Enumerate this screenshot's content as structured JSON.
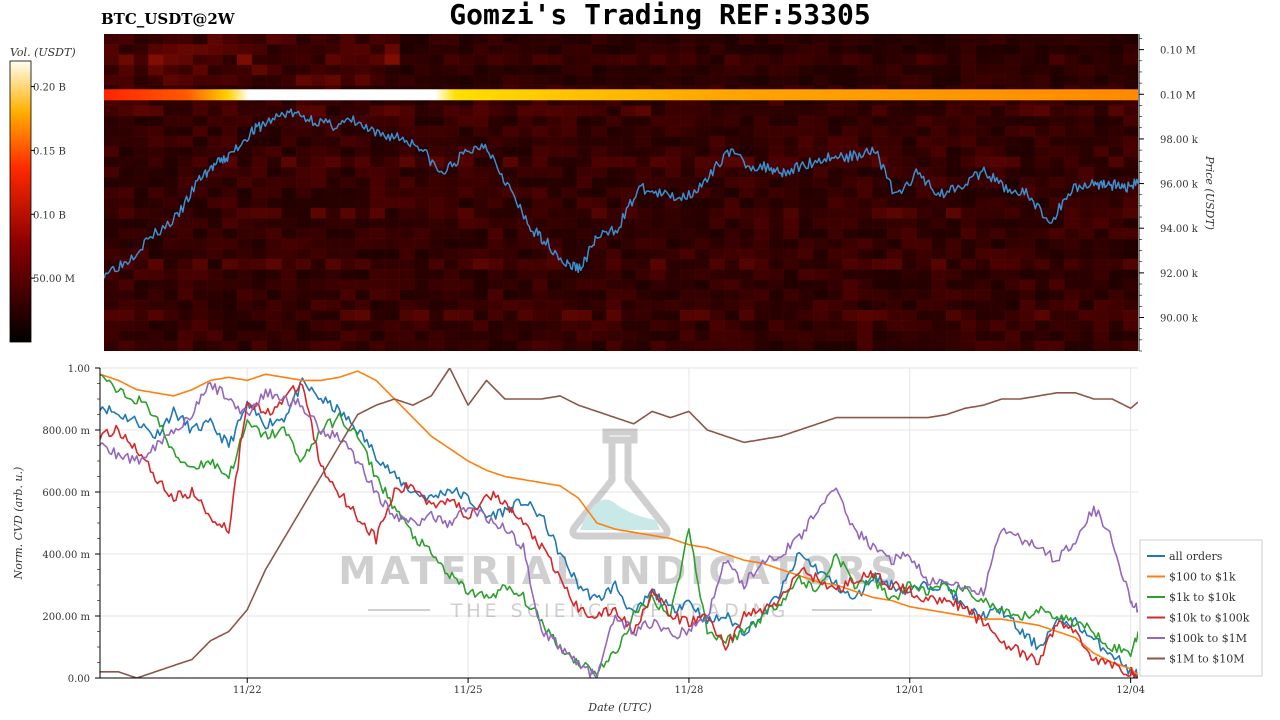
{
  "header": {
    "title": "Gomzi's Trading REF:53305",
    "symbol": "BTC_USDT@2W"
  },
  "watermark": {
    "line1": "MATERIAL INDICATORS",
    "line2": "THE SCIENCE OF TRADING"
  },
  "colors": {
    "price_line": "#3a8fd0",
    "background": "#ffffff"
  },
  "chart_data": [
    {
      "type": "heatmap",
      "overlay": "line",
      "colorbar": {
        "label": "Vol. (USDT)",
        "ticks": [
          "0.20 B",
          "0.15 B",
          "0.10 B",
          "50.00 M"
        ],
        "tick_values": [
          200000000,
          150000000,
          100000000,
          50000000
        ],
        "range": [
          0,
          220000000
        ],
        "colormap": "hot"
      },
      "ylabel": "Price (USDT)",
      "y_ticks": [
        "0.10 M",
        "0.10 M",
        "98.00 k",
        "96.00 k",
        "94.00 k",
        "92.00 k",
        "90.00 k"
      ],
      "y_tick_values": [
        102000,
        100000,
        98000,
        96000,
        94000,
        92000,
        90000
      ],
      "ylim": [
        88500,
        102700
      ],
      "xlim": [
        0,
        14.1
      ],
      "bright_band": {
        "price": 100000,
        "peak_volume": 210000000
      },
      "series": [
        {
          "x": [
            0,
            0.3,
            0.6,
            1.0,
            1.3,
            1.5,
            1.7,
            2.0,
            2.2,
            2.5,
            2.8,
            3.1,
            3.4,
            3.7,
            4.0,
            4.3,
            4.6,
            4.9,
            5.2,
            5.5,
            5.8,
            6.0,
            6.3,
            6.5,
            6.7,
            7.0,
            7.3,
            7.6,
            7.9,
            8.2,
            8.5,
            8.8,
            9.1,
            9.3,
            9.6,
            9.9,
            10.2,
            10.5,
            10.8,
            11.1,
            11.4,
            11.7,
            12.0,
            12.3,
            12.6,
            12.9,
            13.2,
            13.5,
            13.7,
            13.9,
            14.1
          ],
          "values": [
            92000,
            92500,
            93500,
            94500,
            96200,
            96800,
            97200,
            98300,
            98700,
            99200,
            98900,
            98600,
            98800,
            98200,
            98100,
            97700,
            96400,
            97300,
            97800,
            96000,
            94000,
            93500,
            92400,
            92200,
            93500,
            94000,
            95800,
            95500,
            95400,
            96000,
            97500,
            96800,
            96700,
            96500,
            96900,
            97200,
            97200,
            97600,
            95400,
            96500,
            95500,
            96000,
            96500,
            95800,
            95500,
            94200,
            95800,
            96000,
            96000,
            95800,
            96000
          ]
        }
      ]
    },
    {
      "type": "line",
      "xlabel": "Date (UTC)",
      "ylabel": "Norm. CVD (arb. u.)",
      "x_ticks": [
        "11/22",
        "11/25",
        "11/28",
        "12/01",
        "12/04"
      ],
      "x_tick_values": [
        2,
        5,
        8,
        11,
        14
      ],
      "xlim": [
        0,
        14.1
      ],
      "y_ticks": [
        "0.00",
        "200.00 m",
        "400.00 m",
        "600.00 m",
        "800.00 m",
        "1.00"
      ],
      "y_tick_values": [
        0,
        0.2,
        0.4,
        0.6,
        0.8,
        1.0
      ],
      "ylim": [
        0,
        1.0
      ],
      "grid": true,
      "legend_position": "bottom-right",
      "x": [
        0,
        0.25,
        0.5,
        0.75,
        1,
        1.25,
        1.5,
        1.75,
        2,
        2.25,
        2.5,
        2.75,
        3,
        3.25,
        3.5,
        3.75,
        4,
        4.25,
        4.5,
        4.75,
        5,
        5.25,
        5.5,
        5.75,
        6,
        6.25,
        6.5,
        6.75,
        7,
        7.25,
        7.5,
        7.75,
        8,
        8.25,
        8.5,
        8.75,
        9,
        9.25,
        9.5,
        9.75,
        10,
        10.25,
        10.5,
        10.75,
        11,
        11.25,
        11.5,
        11.75,
        12,
        12.25,
        12.5,
        12.75,
        13,
        13.25,
        13.5,
        13.75,
        14,
        14.1
      ],
      "series": [
        {
          "name": "all orders",
          "color": "#1f77b4",
          "values": [
            0.88,
            0.85,
            0.83,
            0.78,
            0.86,
            0.8,
            0.82,
            0.75,
            0.88,
            0.82,
            0.84,
            0.95,
            0.9,
            0.86,
            0.8,
            0.72,
            0.65,
            0.6,
            0.58,
            0.61,
            0.58,
            0.52,
            0.54,
            0.57,
            0.52,
            0.4,
            0.3,
            0.25,
            0.3,
            0.2,
            0.28,
            0.22,
            0.25,
            0.18,
            0.2,
            0.15,
            0.2,
            0.28,
            0.4,
            0.35,
            0.3,
            0.25,
            0.33,
            0.3,
            0.28,
            0.3,
            0.3,
            0.22,
            0.2,
            0.22,
            0.15,
            0.1,
            0.18,
            0.18,
            0.12,
            0.08,
            0.02,
            0.01
          ]
        },
        {
          "name": "$100 to $1k",
          "color": "#ff7f0e",
          "values": [
            0.98,
            0.96,
            0.93,
            0.92,
            0.91,
            0.93,
            0.96,
            0.97,
            0.96,
            0.98,
            0.97,
            0.96,
            0.96,
            0.97,
            0.99,
            0.96,
            0.9,
            0.84,
            0.78,
            0.74,
            0.7,
            0.67,
            0.65,
            0.64,
            0.63,
            0.62,
            0.58,
            0.5,
            0.48,
            0.47,
            0.46,
            0.45,
            0.43,
            0.42,
            0.4,
            0.38,
            0.37,
            0.35,
            0.33,
            0.31,
            0.3,
            0.28,
            0.26,
            0.25,
            0.23,
            0.22,
            0.21,
            0.2,
            0.19,
            0.19,
            0.18,
            0.17,
            0.15,
            0.13,
            0.08,
            0.05,
            0.03,
            0.01
          ]
        },
        {
          "name": "$1k to $10k",
          "color": "#2ca02c",
          "values": [
            0.97,
            0.92,
            0.9,
            0.85,
            0.72,
            0.68,
            0.7,
            0.65,
            0.82,
            0.78,
            0.8,
            0.7,
            0.8,
            0.84,
            0.78,
            0.65,
            0.55,
            0.46,
            0.4,
            0.33,
            0.28,
            0.26,
            0.29,
            0.26,
            0.18,
            0.1,
            0.05,
            0.02,
            0.08,
            0.2,
            0.26,
            0.2,
            0.48,
            0.15,
            0.12,
            0.15,
            0.2,
            0.25,
            0.32,
            0.28,
            0.4,
            0.3,
            0.32,
            0.25,
            0.3,
            0.28,
            0.29,
            0.28,
            0.25,
            0.21,
            0.19,
            0.22,
            0.2,
            0.18,
            0.15,
            0.1,
            0.08,
            0.15
          ]
        },
        {
          "name": "$10k to $100k",
          "color": "#d62728",
          "values": [
            0.78,
            0.8,
            0.74,
            0.65,
            0.58,
            0.6,
            0.52,
            0.48,
            0.9,
            0.85,
            0.9,
            0.95,
            0.68,
            0.6,
            0.52,
            0.45,
            0.6,
            0.62,
            0.56,
            0.58,
            0.52,
            0.6,
            0.56,
            0.5,
            0.42,
            0.32,
            0.22,
            0.2,
            0.22,
            0.15,
            0.28,
            0.2,
            0.18,
            0.2,
            0.1,
            0.2,
            0.22,
            0.25,
            0.35,
            0.32,
            0.28,
            0.32,
            0.33,
            0.3,
            0.28,
            0.25,
            0.26,
            0.22,
            0.18,
            0.12,
            0.08,
            0.05,
            0.18,
            0.15,
            0.06,
            0.04,
            0.02,
            0.0
          ]
        },
        {
          "name": "$100k to $1M",
          "color": "#9467bd",
          "values": [
            0.75,
            0.72,
            0.7,
            0.75,
            0.8,
            0.85,
            0.95,
            0.9,
            0.85,
            0.92,
            0.9,
            0.88,
            0.8,
            0.78,
            0.7,
            0.6,
            0.52,
            0.5,
            0.52,
            0.5,
            0.55,
            0.52,
            0.48,
            0.42,
            0.15,
            0.1,
            0.05,
            0.0,
            0.2,
            0.15,
            0.18,
            0.14,
            0.15,
            0.2,
            0.38,
            0.3,
            0.38,
            0.4,
            0.45,
            0.55,
            0.6,
            0.48,
            0.42,
            0.38,
            0.4,
            0.3,
            0.32,
            0.28,
            0.28,
            0.48,
            0.45,
            0.42,
            0.38,
            0.45,
            0.55,
            0.45,
            0.25,
            0.22
          ]
        },
        {
          "name": "$1M to $10M",
          "color": "#8c564b",
          "values": [
            0.02,
            0.02,
            0.0,
            0.02,
            0.04,
            0.06,
            0.12,
            0.15,
            0.22,
            0.35,
            0.45,
            0.55,
            0.65,
            0.75,
            0.85,
            0.88,
            0.9,
            0.88,
            0.91,
            1.0,
            0.88,
            0.96,
            0.9,
            0.9,
            0.9,
            0.91,
            0.88,
            0.86,
            0.84,
            0.82,
            0.86,
            0.84,
            0.86,
            0.8,
            0.78,
            0.76,
            0.77,
            0.78,
            0.8,
            0.82,
            0.84,
            0.84,
            0.84,
            0.84,
            0.84,
            0.84,
            0.85,
            0.87,
            0.88,
            0.9,
            0.9,
            0.91,
            0.92,
            0.92,
            0.9,
            0.9,
            0.87,
            0.89
          ]
        }
      ]
    }
  ]
}
